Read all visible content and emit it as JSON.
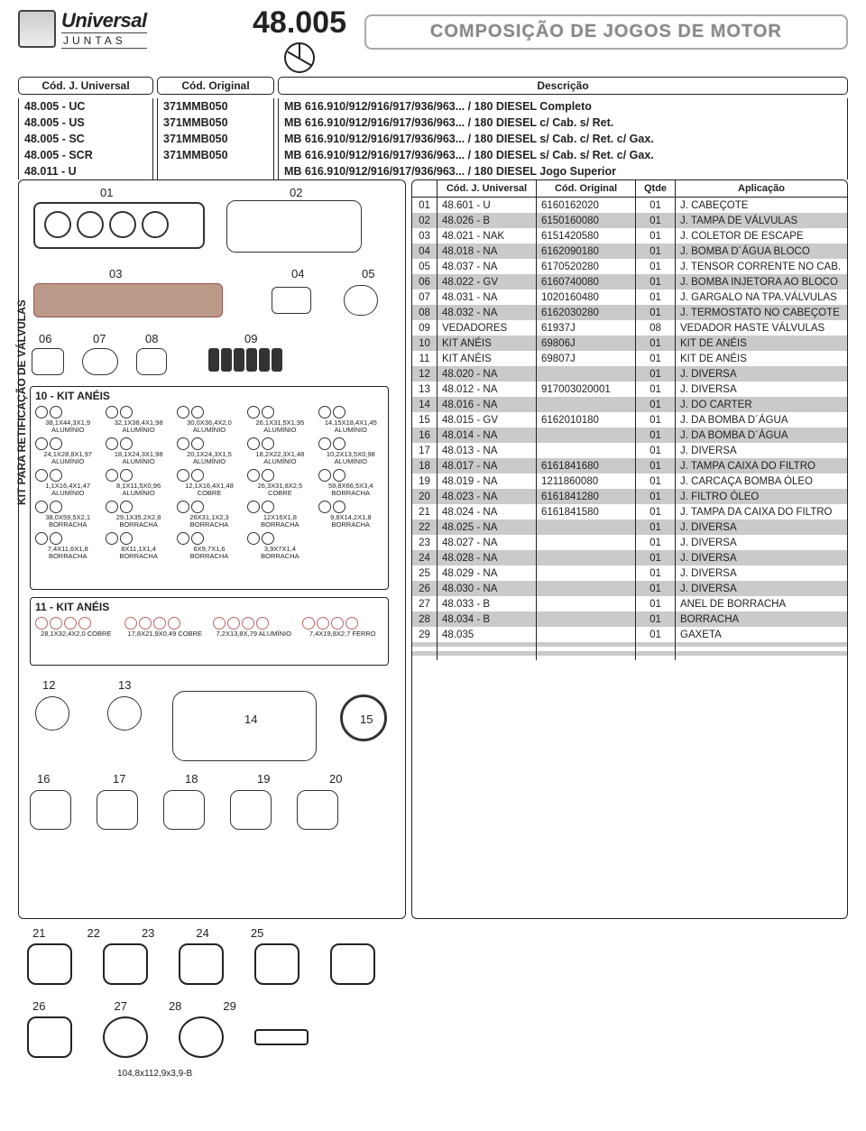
{
  "logo": {
    "brand": "Universal",
    "sub": "JUNTAS"
  },
  "page_code": "48.005",
  "banner": "COMPOSIÇÃO DE JOGOS DE MOTOR",
  "top_headers": {
    "col1": "Cód. J. Universal",
    "col2": "Cód. Original",
    "col3": "Descrição"
  },
  "desc_rows": [
    {
      "c1": "48.005 - UC",
      "c2": "371MMB050",
      "c3": "MB 616.910/912/916/917/936/963... / 180 DIESEL Completo"
    },
    {
      "c1": "48.005 - US",
      "c2": "371MMB050",
      "c3": "MB 616.910/912/916/917/936/963... / 180 DIESEL c/ Cab. s/ Ret."
    },
    {
      "c1": "48.005 - SC",
      "c2": "371MMB050",
      "c3": "MB 616.910/912/916/917/936/963... / 180 DIESEL s/ Cab. c/ Ret. c/ Gax."
    },
    {
      "c1": "48.005 - SCR",
      "c2": "371MMB050",
      "c3": "MB 616.910/912/916/917/936/963... / 180 DIESEL s/ Cab. s/ Ret. c/ Gax."
    },
    {
      "c1": "48.011 - U",
      "c2": "",
      "c3": "MB 616.910/912/916/917/936/963... / 180 DIESEL Jogo Superior"
    }
  ],
  "parts_headers": {
    "n": "",
    "code": "Cód. J. Universal",
    "orig": "Cód. Original",
    "qty": "Qtde",
    "app": "Aplicação"
  },
  "parts": [
    {
      "n": "01",
      "code": "48.601 - U",
      "orig": "6160162020",
      "qty": "01",
      "app": "J. CABEÇOTE"
    },
    {
      "n": "02",
      "code": "48.026 - B",
      "orig": "6150160080",
      "qty": "01",
      "app": "J. TAMPA DE VÁLVULAS"
    },
    {
      "n": "03",
      "code": "48.021 - NAK",
      "orig": "6151420580",
      "qty": "01",
      "app": "J. COLETOR DE ESCAPE"
    },
    {
      "n": "04",
      "code": "48.018 - NA",
      "orig": "6162090180",
      "qty": "01",
      "app": "J. BOMBA D´ÁGUA BLOCO"
    },
    {
      "n": "05",
      "code": "48.037 - NA",
      "orig": "6170520280",
      "qty": "01",
      "app": "J. TENSOR CORRENTE NO CAB."
    },
    {
      "n": "06",
      "code": "48.022 - GV",
      "orig": "6160740080",
      "qty": "01",
      "app": "J. BOMBA INJETORA AO BLOCO"
    },
    {
      "n": "07",
      "code": "48.031 - NA",
      "orig": "1020160480",
      "qty": "01",
      "app": "J. GARGALO NA TPA.VÁLVULAS"
    },
    {
      "n": "08",
      "code": "48.032 - NA",
      "orig": "6162030280",
      "qty": "01",
      "app": "J. TERMOSTATO NO CABEÇOTE"
    },
    {
      "n": "09",
      "code": "VEDADORES",
      "orig": "61937J",
      "qty": "08",
      "app": "VEDADOR HASTE VÁLVULAS"
    },
    {
      "n": "10",
      "code": "KIT ANÉIS",
      "orig": "69806J",
      "qty": "01",
      "app": "KIT DE ANÉIS"
    },
    {
      "n": "11",
      "code": "KIT ANÉIS",
      "orig": "69807J",
      "qty": "01",
      "app": "KIT DE ANÉIS"
    },
    {
      "n": "12",
      "code": "48.020 - NA",
      "orig": "",
      "qty": "01",
      "app": "J. DIVERSA"
    },
    {
      "n": "13",
      "code": "48.012 - NA",
      "orig": "917003020001",
      "qty": "01",
      "app": "J. DIVERSA"
    },
    {
      "n": "14",
      "code": "48.016 - NA",
      "orig": "",
      "qty": "01",
      "app": "J. DO CARTER"
    },
    {
      "n": "15",
      "code": "48.015 - GV",
      "orig": "6162010180",
      "qty": "01",
      "app": "J. DA BOMBA D´ÁGUA"
    },
    {
      "n": "16",
      "code": "48.014 - NA",
      "orig": "",
      "qty": "01",
      "app": "J. DA BOMBA D´ÁGUA"
    },
    {
      "n": "17",
      "code": "48.013 - NA",
      "orig": "",
      "qty": "01",
      "app": "J. DIVERSA"
    },
    {
      "n": "18",
      "code": "48.017 - NA",
      "orig": "6161841680",
      "qty": "01",
      "app": "J. TAMPA CAIXA DO FILTRO"
    },
    {
      "n": "19",
      "code": "48.019 - NA",
      "orig": "1211860080",
      "qty": "01",
      "app": "J. CARCAÇA BOMBA ÓLEO"
    },
    {
      "n": "20",
      "code": "48.023 - NA",
      "orig": "6161841280",
      "qty": "01",
      "app": "J. FILTRO ÓLEO"
    },
    {
      "n": "21",
      "code": "48.024 - NA",
      "orig": "6161841580",
      "qty": "01",
      "app": "J. TAMPA DA CAIXA DO FILTRO"
    },
    {
      "n": "22",
      "code": "48.025 - NA",
      "orig": "",
      "qty": "01",
      "app": "J. DIVERSA"
    },
    {
      "n": "23",
      "code": "48.027 - NA",
      "orig": "",
      "qty": "01",
      "app": "J. DIVERSA"
    },
    {
      "n": "24",
      "code": "48.028 - NA",
      "orig": "",
      "qty": "01",
      "app": "J. DIVERSA"
    },
    {
      "n": "25",
      "code": "48.029 - NA",
      "orig": "",
      "qty": "01",
      "app": "J. DIVERSA"
    },
    {
      "n": "26",
      "code": "48.030 - NA",
      "orig": "",
      "qty": "01",
      "app": "J. DIVERSA"
    },
    {
      "n": "27",
      "code": "48.033 - B",
      "orig": "",
      "qty": "01",
      "app": "ANEL DE BORRACHA"
    },
    {
      "n": "28",
      "code": "48.034 - B",
      "orig": "",
      "qty": "01",
      "app": "BORRACHA"
    },
    {
      "n": "29",
      "code": "48.035",
      "orig": "",
      "qty": "01",
      "app": "GAXETA"
    }
  ],
  "diagram": {
    "side_label": "KIT PARA RETIFICAÇÃO DE VÁLVULAS",
    "kit10_title": "10 - KIT ANÉIS",
    "kit11_title": "11 - KIT ANÉIS",
    "callouts": [
      "01",
      "02",
      "03",
      "04",
      "05",
      "06",
      "07",
      "08",
      "09",
      "12",
      "13",
      "14",
      "15",
      "16",
      "17",
      "18",
      "19",
      "20",
      "21",
      "22",
      "23",
      "24",
      "25",
      "26",
      "27",
      "28",
      "29"
    ],
    "ring_specs": [
      "38,1X44,3X1,9 ALUMÍNIO",
      "32,1X38,4X1,98 ALUMÍNIO",
      "30,0X36,4X2,0 ALUMÍNIO",
      "26,1X31,5X1,95 ALUMÍNIO",
      "14,15X18,4X1,45 ALUMÍNIO",
      "24,1X28,8X1,97 ALUMÍNIO",
      "18,1X24,3X1,98 ALUMÍNIO",
      "20,1X24,3X1,5 ALUMÍNIO",
      "18,2X22,3X1,48 ALUMÍNIO",
      "10,2X13,5X0,98 ALUMÍNIO",
      "1,1X16,4X1,47 ALUMÍNIO",
      "8,1X11,5X0,96 ALUMÍNIO",
      "12,1X16,4X1,48 COBRE",
      "26,3X31,8X2,5 COBRE",
      "59,8X66,5X3,4 BORRACHA",
      "38,0X59,5X2,1 BORRACHA",
      "29,1X35,2X2,8 BORRACHA",
      "26X31,1X2,3 BORRACHA",
      "12X16X1,8 BORRACHA",
      "9,8X14,2X1,8 BORRACHA",
      "7,4X11,6X1,8 BORRACHA",
      "8X11,1X1,4 BORRACHA",
      "6X9,7X1,6 BORRACHA",
      "3,9X7X1,4 BORRACHA"
    ],
    "kit11_specs": [
      "28,1X32,4X2,0 COBRE",
      "17,8X21,9X0,49 COBRE",
      "7,2X13,8X,79 ALUMÍNIO",
      "7,4X19,8X2,7 FERRO"
    ],
    "footnote": "104,8x112,9x3,9-B"
  },
  "colors": {
    "alt_row": "#c9cacb",
    "border": "#222222"
  }
}
